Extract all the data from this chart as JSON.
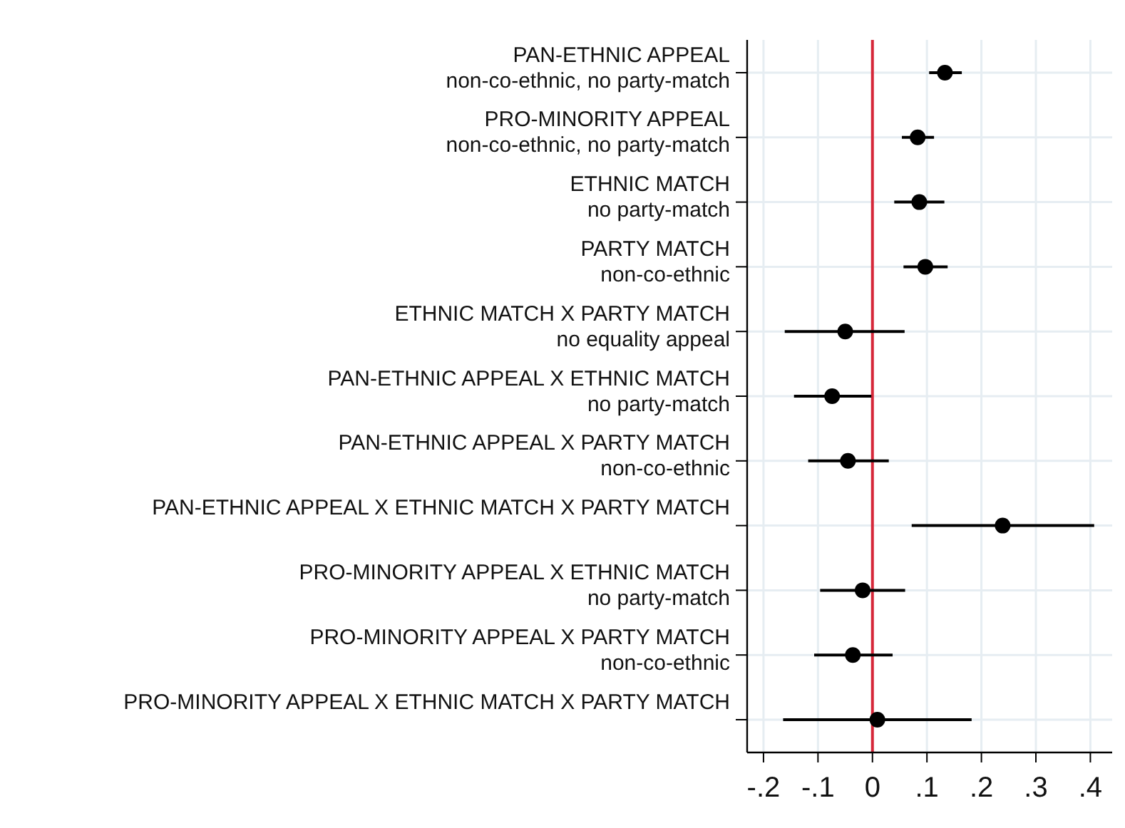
{
  "chart_data": {
    "type": "scatter",
    "orientation": "horizontal",
    "categories": [
      "PAN-ETHNIC APPEAL\nnon-co-ethnic, no party-match",
      "PRO-MINORITY APPEAL\nnon-co-ethnic, no party-match",
      "ETHNIC MATCH\nno party-match",
      "PARTY MATCH\nnon-co-ethnic",
      "ETHNIC MATCH X PARTY MATCH\nno equality appeal",
      "PAN-ETHNIC APPEAL X ETHNIC MATCH\nno party-match",
      "PAN-ETHNIC APPEAL X PARTY MATCH\nnon-co-ethnic",
      "PAN-ETHNIC APPEAL X ETHNIC MATCH X PARTY MATCH",
      "PRO-MINORITY APPEAL X ETHNIC MATCH\nno party-match",
      "PRO-MINORITY APPEAL X PARTY MATCH\nnon-co-ethnic",
      "PRO-MINORITY APPEAL X ETHNIC MATCH X PARTY MATCH"
    ],
    "series": [
      {
        "color": "#000000",
        "values": [
          0.133,
          0.083,
          0.086,
          0.097,
          -0.05,
          -0.074,
          -0.045,
          0.239,
          -0.018,
          -0.036,
          0.009
        ],
        "errors": [
          [
            0.104,
            0.164
          ],
          [
            0.054,
            0.113
          ],
          [
            0.04,
            0.132
          ],
          [
            0.057,
            0.138
          ],
          [
            -0.161,
            0.059
          ],
          [
            -0.144,
            -0.002
          ],
          [
            -0.118,
            0.03
          ],
          [
            0.072,
            0.407
          ],
          [
            -0.096,
            0.06
          ],
          [
            -0.107,
            0.037
          ],
          [
            -0.164,
            0.182
          ]
        ]
      }
    ],
    "xlim": [
      -0.23,
      0.44
    ],
    "xticks": [
      {
        "value": -0.2,
        "label": "-.2"
      },
      {
        "value": -0.1,
        "label": "-.1"
      },
      0,
      {
        "value": 0.1,
        "label": ".1"
      },
      {
        "value": 0.2,
        "label": ".2"
      },
      {
        "value": 0.3,
        "label": ".3"
      },
      {
        "value": 0.4,
        "label": ".4"
      }
    ],
    "ref_lines": [
      {
        "axis": "x",
        "value": 0,
        "color": "#d62839"
      }
    ],
    "grid": true,
    "marker": "circle"
  }
}
